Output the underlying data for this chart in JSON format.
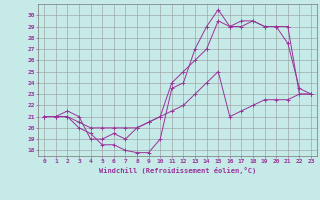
{
  "xlabel": "Windchill (Refroidissement éolien,°C)",
  "bg_color": "#c5eae8",
  "line_color": "#993399",
  "grid_color": "#999999",
  "xlim": [
    -0.5,
    23.5
  ],
  "ylim": [
    17.5,
    31.0
  ],
  "yticks": [
    18,
    19,
    20,
    21,
    22,
    23,
    24,
    25,
    26,
    27,
    28,
    29,
    30
  ],
  "xticks": [
    0,
    1,
    2,
    3,
    4,
    5,
    6,
    7,
    8,
    9,
    10,
    11,
    12,
    13,
    14,
    15,
    16,
    17,
    18,
    19,
    20,
    21,
    22,
    23
  ],
  "series1": [
    [
      0,
      21.0
    ],
    [
      1,
      21.0
    ],
    [
      2,
      21.0
    ],
    [
      3,
      20.0
    ],
    [
      4,
      19.5
    ],
    [
      5,
      18.5
    ],
    [
      6,
      18.5
    ],
    [
      7,
      18.0
    ],
    [
      8,
      17.8
    ],
    [
      9,
      17.8
    ],
    [
      10,
      19.0
    ],
    [
      11,
      23.5
    ],
    [
      12,
      24.0
    ],
    [
      13,
      27.0
    ],
    [
      14,
      29.0
    ],
    [
      15,
      30.5
    ],
    [
      16,
      29.0
    ],
    [
      17,
      29.5
    ],
    [
      18,
      29.5
    ],
    [
      19,
      29.0
    ],
    [
      20,
      29.0
    ],
    [
      21,
      27.5
    ],
    [
      22,
      23.5
    ],
    [
      23,
      23.0
    ]
  ],
  "series2": [
    [
      0,
      21.0
    ],
    [
      1,
      21.0
    ],
    [
      2,
      21.0
    ],
    [
      3,
      20.5
    ],
    [
      4,
      20.0
    ],
    [
      5,
      20.0
    ],
    [
      6,
      20.0
    ],
    [
      7,
      20.0
    ],
    [
      8,
      20.0
    ],
    [
      9,
      20.5
    ],
    [
      10,
      21.0
    ],
    [
      11,
      21.5
    ],
    [
      12,
      22.0
    ],
    [
      13,
      23.0
    ],
    [
      14,
      24.0
    ],
    [
      15,
      25.0
    ],
    [
      16,
      21.0
    ],
    [
      17,
      21.5
    ],
    [
      18,
      22.0
    ],
    [
      19,
      22.5
    ],
    [
      20,
      22.5
    ],
    [
      21,
      22.5
    ],
    [
      22,
      23.0
    ],
    [
      23,
      23.0
    ]
  ],
  "series3": [
    [
      0,
      21.0
    ],
    [
      1,
      21.0
    ],
    [
      2,
      21.5
    ],
    [
      3,
      21.0
    ],
    [
      4,
      19.0
    ],
    [
      5,
      19.0
    ],
    [
      6,
      19.5
    ],
    [
      7,
      19.0
    ],
    [
      8,
      20.0
    ],
    [
      9,
      20.5
    ],
    [
      10,
      21.0
    ],
    [
      11,
      24.0
    ],
    [
      12,
      25.0
    ],
    [
      13,
      26.0
    ],
    [
      14,
      27.0
    ],
    [
      15,
      29.5
    ],
    [
      16,
      29.0
    ],
    [
      17,
      29.0
    ],
    [
      18,
      29.5
    ],
    [
      19,
      29.0
    ],
    [
      20,
      29.0
    ],
    [
      21,
      29.0
    ],
    [
      22,
      23.0
    ],
    [
      23,
      23.0
    ]
  ]
}
